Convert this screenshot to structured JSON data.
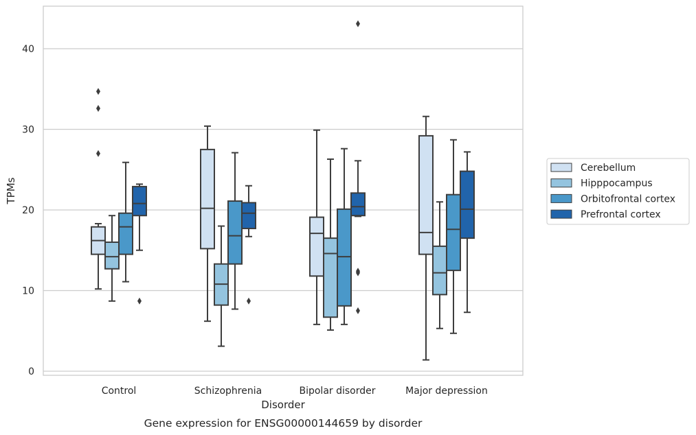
{
  "chart_data": {
    "type": "box",
    "caption": "Gene expression for ENSG00000144659 by disorder",
    "xlabel": "Disorder",
    "ylabel": "TPMs",
    "ylim": [
      -0.6,
      45.3
    ],
    "yticks": [
      0,
      10,
      20,
      30,
      40
    ],
    "categories": [
      "Control",
      "Schizophrenia",
      "Bipolar disorder",
      "Major depression"
    ],
    "grid": "horizontal",
    "legend_position": "right",
    "series": [
      {
        "name": "Cerebellum",
        "color": "#d0e1f2",
        "boxes": [
          {
            "whisker_low": 10.2,
            "q1": 14.5,
            "median": 16.2,
            "q3": 17.9,
            "whisker_high": 18.3,
            "outliers": [
              27.0,
              32.6,
              34.7
            ]
          },
          {
            "whisker_low": 6.2,
            "q1": 15.2,
            "median": 20.2,
            "q3": 27.5,
            "whisker_high": 30.4,
            "outliers": []
          },
          {
            "whisker_low": 5.8,
            "q1": 11.8,
            "median": 17.1,
            "q3": 19.1,
            "whisker_high": 29.9,
            "outliers": []
          },
          {
            "whisker_low": 1.4,
            "q1": 14.5,
            "median": 17.2,
            "q3": 29.2,
            "whisker_high": 31.6,
            "outliers": []
          }
        ]
      },
      {
        "name": "Hipppocampus",
        "color": "#94c4df",
        "boxes": [
          {
            "whisker_low": 8.7,
            "q1": 12.7,
            "median": 14.2,
            "q3": 16.0,
            "whisker_high": 19.3,
            "outliers": []
          },
          {
            "whisker_low": 3.1,
            "q1": 8.2,
            "median": 10.8,
            "q3": 13.3,
            "whisker_high": 18.0,
            "outliers": []
          },
          {
            "whisker_low": 5.1,
            "q1": 6.7,
            "median": 14.6,
            "q3": 16.5,
            "whisker_high": 26.3,
            "outliers": []
          },
          {
            "whisker_low": 5.3,
            "q1": 9.5,
            "median": 12.2,
            "q3": 15.5,
            "whisker_high": 21.0,
            "outliers": []
          }
        ]
      },
      {
        "name": "Orbitofrontal cortex",
        "color": "#4a98c9",
        "boxes": [
          {
            "whisker_low": 11.1,
            "q1": 14.5,
            "median": 17.9,
            "q3": 19.6,
            "whisker_high": 25.9,
            "outliers": []
          },
          {
            "whisker_low": 7.7,
            "q1": 13.3,
            "median": 16.8,
            "q3": 21.1,
            "whisker_high": 27.1,
            "outliers": []
          },
          {
            "whisker_low": 5.8,
            "q1": 8.1,
            "median": 14.2,
            "q3": 20.1,
            "whisker_high": 27.6,
            "outliers": []
          },
          {
            "whisker_low": 4.7,
            "q1": 12.5,
            "median": 17.6,
            "q3": 21.9,
            "whisker_high": 28.7,
            "outliers": []
          }
        ]
      },
      {
        "name": "Prefrontal cortex",
        "color": "#2164ab",
        "boxes": [
          {
            "whisker_low": 15.0,
            "q1": 19.3,
            "median": 20.8,
            "q3": 22.9,
            "whisker_high": 23.2,
            "outliers": [
              8.7
            ]
          },
          {
            "whisker_low": 16.7,
            "q1": 17.7,
            "median": 19.6,
            "q3": 20.9,
            "whisker_high": 23.0,
            "outliers": [
              8.7
            ]
          },
          {
            "whisker_low": 19.2,
            "q1": 19.3,
            "median": 20.4,
            "q3": 22.1,
            "whisker_high": 26.1,
            "outliers": [
              7.5,
              12.2,
              12.4,
              43.1
            ]
          },
          {
            "whisker_low": 7.3,
            "q1": 16.5,
            "median": 20.1,
            "q3": 24.8,
            "whisker_high": 27.2,
            "outliers": []
          }
        ]
      }
    ]
  }
}
